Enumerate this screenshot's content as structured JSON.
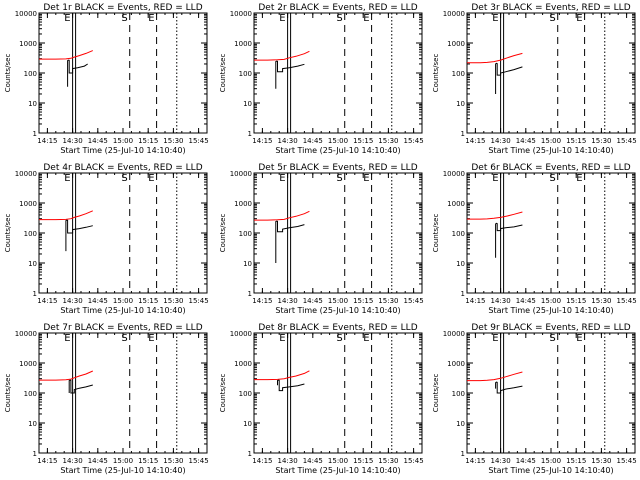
{
  "chart_data": {
    "type": "line",
    "layout": "3x3 grid of panels",
    "shared": {
      "ylabel": "Counts/sec",
      "xlabel": "Start Time (25-Jul-10 14:10:40)",
      "yscale": "log",
      "ylim": [
        1,
        10000
      ],
      "yticks": [
        "1",
        "10",
        "100",
        "1000",
        "10000"
      ],
      "xlim": [
        "14:10",
        "15:50"
      ],
      "xticks": [
        "14:15",
        "14:30",
        "14:45",
        "15:00",
        "15:15",
        "15:30",
        "15:45"
      ],
      "grid": false,
      "colors": {
        "events": "#000000",
        "lld": "#ff0000"
      },
      "vertical_markers": [
        {
          "label": "E",
          "time": "14:30",
          "style": "solid",
          "repeat": "double"
        },
        {
          "label": "S",
          "time": "15:04",
          "style": "dashed"
        },
        {
          "label": "E",
          "time": "15:20",
          "style": "dashed"
        },
        {
          "label": "",
          "time": "15:32",
          "style": "dotted"
        }
      ]
    },
    "panels": [
      {
        "title": "Det 1r BLACK = Events, RED = LLD",
        "lld": {
          "x": [
            "14:10",
            "14:20",
            "14:26",
            "14:29",
            "14:31",
            "14:34",
            "14:38",
            "14:42"
          ],
          "y": [
            290,
            290,
            295,
            310,
            340,
            380,
            450,
            560
          ]
        },
        "events": {
          "x": [
            "14:27",
            "14:27",
            "14:27.5",
            "14:28",
            "14:28",
            "14:30",
            "14:30",
            "14:33",
            "14:37",
            "14:39"
          ],
          "y": [
            35,
            260,
            270,
            265,
            100,
            100,
            140,
            150,
            170,
            200
          ]
        }
      },
      {
        "title": "Det 2r BLACK = Events, RED = LLD",
        "lld": {
          "x": [
            "14:10",
            "14:18",
            "14:24",
            "14:28",
            "14:31",
            "14:35",
            "14:40",
            "14:43"
          ],
          "y": [
            270,
            270,
            275,
            285,
            320,
            360,
            440,
            530
          ]
        },
        "events": {
          "x": [
            "14:23",
            "14:23",
            "14:23.5",
            "14:24",
            "14:24",
            "14:27",
            "14:27",
            "14:31",
            "14:36",
            "14:40"
          ],
          "y": [
            30,
            240,
            250,
            245,
            110,
            110,
            140,
            150,
            170,
            195
          ]
        }
      },
      {
        "title": "Det 3r BLACK = Events, RED = LLD",
        "lld": {
          "x": [
            "14:10",
            "14:18",
            "14:22",
            "14:26",
            "14:30",
            "14:34",
            "14:38",
            "14:43"
          ],
          "y": [
            220,
            220,
            225,
            240,
            270,
            320,
            380,
            450
          ]
        },
        "events": {
          "x": [
            "14:27",
            "14:27",
            "14:27.5",
            "14:28",
            "14:28",
            "14:30",
            "14:30",
            "14:33",
            "14:38",
            "14:43"
          ],
          "y": [
            20,
            200,
            210,
            205,
            85,
            85,
            100,
            110,
            130,
            160
          ]
        }
      },
      {
        "title": "Det 4r BLACK = Events, RED = LLD",
        "lld": {
          "x": [
            "14:10",
            "14:20",
            "14:26",
            "14:29",
            "14:31",
            "14:34",
            "14:38",
            "14:42"
          ],
          "y": [
            280,
            280,
            285,
            300,
            330,
            370,
            440,
            550
          ]
        },
        "events": {
          "x": [
            "14:26",
            "14:26",
            "14:26.5",
            "14:27",
            "14:27",
            "14:30",
            "14:30",
            "14:34",
            "14:38",
            "14:42"
          ],
          "y": [
            25,
            260,
            270,
            265,
            100,
            100,
            130,
            140,
            155,
            175
          ]
        }
      },
      {
        "title": "Det 5r BLACK = Events, RED = LLD",
        "lld": {
          "x": [
            "14:10",
            "14:18",
            "14:24",
            "14:28",
            "14:31",
            "14:35",
            "14:40",
            "14:43"
          ],
          "y": [
            270,
            270,
            275,
            285,
            320,
            360,
            440,
            530
          ]
        },
        "events": {
          "x": [
            "14:23",
            "14:23",
            "14:23.5",
            "14:24",
            "14:24",
            "14:27",
            "14:27",
            "14:31",
            "14:36",
            "14:40"
          ],
          "y": [
            10,
            240,
            250,
            245,
            110,
            110,
            135,
            150,
            165,
            190
          ]
        }
      },
      {
        "title": "Det 6r BLACK = Events, RED = LLD",
        "lld": {
          "x": [
            "14:10",
            "14:18",
            "14:22",
            "14:26",
            "14:30",
            "14:34",
            "14:38",
            "14:43"
          ],
          "y": [
            290,
            290,
            295,
            310,
            330,
            370,
            420,
            500
          ]
        },
        "events": {
          "x": [
            "14:27",
            "14:27",
            "14:27.5",
            "14:28",
            "14:28",
            "14:30",
            "14:30",
            "14:33",
            "14:38",
            "14:43"
          ],
          "y": [
            15,
            200,
            210,
            205,
            120,
            120,
            140,
            150,
            160,
            185
          ]
        }
      },
      {
        "title": "Det 7r BLACK = Events, RED = LLD",
        "lld": {
          "x": [
            "14:10",
            "14:20",
            "14:26",
            "14:29",
            "14:31",
            "14:34",
            "14:38",
            "14:42"
          ],
          "y": [
            270,
            270,
            275,
            290,
            320,
            370,
            430,
            540
          ]
        },
        "events": {
          "x": [
            "14:28",
            "14:28",
            "14:28.5",
            "14:29",
            "14:29",
            "14:31",
            "14:31",
            "14:34",
            "14:38",
            "14:42"
          ],
          "y": [
            100,
            260,
            270,
            265,
            100,
            100,
            130,
            145,
            160,
            185
          ]
        }
      },
      {
        "title": "Det 8r BLACK = Events, RED = LLD",
        "lld": {
          "x": [
            "14:10",
            "14:18",
            "14:24",
            "14:28",
            "14:31",
            "14:35",
            "14:40",
            "14:43"
          ],
          "y": [
            280,
            280,
            285,
            300,
            330,
            370,
            450,
            550
          ]
        },
        "events": {
          "x": [
            "14:24",
            "14:24",
            "14:24.5",
            "14:25",
            "14:25",
            "14:27",
            "14:27",
            "14:31",
            "14:36",
            "14:40"
          ],
          "y": [
            180,
            260,
            270,
            265,
            120,
            120,
            150,
            160,
            175,
            200
          ]
        }
      },
      {
        "title": "Det 9r BLACK = Events, RED = LLD",
        "lld": {
          "x": [
            "14:10",
            "14:18",
            "14:22",
            "14:26",
            "14:30",
            "14:34",
            "14:38",
            "14:43"
          ],
          "y": [
            260,
            260,
            265,
            280,
            310,
            360,
            420,
            500
          ]
        },
        "events": {
          "x": [
            "14:27",
            "14:27",
            "14:27.5",
            "14:28",
            "14:28",
            "14:30",
            "14:30",
            "14:33",
            "14:38",
            "14:43"
          ],
          "y": [
            140,
            220,
            230,
            225,
            100,
            100,
            120,
            135,
            150,
            170
          ]
        }
      }
    ]
  }
}
